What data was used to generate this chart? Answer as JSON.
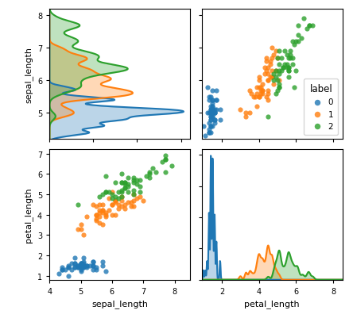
{
  "colors": {
    "0": "#1f77b4",
    "1": "#ff7f0e",
    "2": "#2ca02c"
  },
  "alpha_fill": 0.3,
  "alpha_scatter": 0.8,
  "scatter_size": 20,
  "legend_title": "label",
  "legend_labels": [
    "0",
    "1",
    "2"
  ],
  "sepal_length": {
    "0": [
      5.1,
      4.9,
      4.7,
      4.6,
      5.0,
      5.4,
      4.6,
      5.0,
      4.4,
      4.9,
      5.4,
      4.8,
      4.8,
      4.3,
      5.8,
      5.7,
      5.4,
      5.1,
      5.7,
      5.1,
      5.4,
      5.1,
      4.6,
      5.1,
      4.8,
      5.0,
      5.0,
      5.2,
      5.2,
      4.7,
      4.8,
      5.4,
      5.2,
      5.5,
      4.9,
      5.0,
      5.5,
      4.9,
      4.4,
      5.1,
      5.0,
      4.5,
      4.4,
      5.0,
      5.1,
      4.8,
      5.1,
      4.6,
      5.3,
      5.0
    ],
    "1": [
      7.0,
      6.4,
      6.9,
      5.5,
      6.5,
      5.7,
      6.3,
      4.9,
      6.6,
      5.2,
      5.0,
      5.9,
      6.0,
      6.1,
      5.6,
      6.7,
      5.6,
      5.8,
      6.2,
      5.6,
      5.9,
      6.1,
      6.3,
      6.1,
      6.4,
      6.6,
      6.8,
      6.7,
      6.0,
      5.7,
      5.5,
      5.5,
      5.8,
      6.0,
      5.4,
      6.0,
      6.7,
      6.3,
      5.6,
      5.5,
      5.5,
      6.1,
      5.8,
      5.0,
      5.6,
      5.7,
      5.7,
      6.2,
      5.1,
      5.7
    ],
    "2": [
      6.3,
      5.8,
      7.1,
      6.3,
      6.5,
      7.6,
      4.9,
      7.3,
      6.7,
      7.2,
      6.5,
      6.4,
      6.8,
      5.7,
      5.8,
      6.4,
      6.5,
      7.7,
      7.7,
      6.0,
      6.9,
      5.6,
      7.7,
      6.3,
      6.7,
      7.2,
      6.2,
      6.1,
      6.4,
      7.2,
      7.4,
      7.9,
      6.4,
      6.3,
      6.1,
      7.7,
      6.3,
      6.4,
      6.0,
      6.9,
      6.7,
      6.9,
      5.8,
      6.8,
      6.7,
      6.7,
      6.3,
      6.5,
      6.2,
      5.9
    ]
  },
  "petal_length": {
    "0": [
      1.4,
      1.4,
      1.3,
      1.5,
      1.4,
      1.7,
      1.4,
      1.5,
      1.4,
      1.5,
      1.5,
      1.6,
      1.4,
      1.1,
      1.2,
      1.5,
      1.3,
      1.4,
      1.7,
      1.5,
      1.7,
      1.5,
      1.0,
      1.7,
      1.9,
      1.6,
      1.6,
      1.5,
      1.4,
      1.6,
      1.6,
      1.5,
      1.5,
      1.4,
      1.5,
      1.2,
      1.3,
      1.4,
      1.3,
      1.5,
      1.3,
      1.3,
      1.3,
      1.6,
      1.9,
      1.4,
      1.6,
      1.4,
      1.5,
      1.4
    ],
    "1": [
      4.7,
      4.5,
      4.9,
      4.0,
      4.6,
      4.5,
      4.7,
      3.3,
      4.6,
      3.9,
      3.5,
      4.2,
      4.0,
      4.7,
      3.6,
      4.4,
      4.5,
      4.1,
      4.5,
      3.9,
      4.8,
      4.0,
      4.9,
      4.7,
      4.3,
      4.4,
      4.8,
      5.0,
      4.5,
      3.5,
      3.8,
      3.7,
      3.9,
      5.1,
      4.5,
      4.5,
      4.7,
      4.4,
      4.1,
      4.0,
      4.4,
      4.6,
      4.0,
      3.3,
      4.2,
      4.2,
      4.2,
      4.3,
      3.0,
      4.1
    ],
    "2": [
      6.0,
      5.1,
      5.9,
      5.6,
      5.8,
      6.6,
      4.5,
      6.3,
      5.8,
      6.1,
      5.1,
      5.3,
      5.5,
      5.0,
      5.1,
      5.3,
      5.5,
      6.7,
      6.9,
      5.0,
      5.7,
      4.9,
      6.7,
      4.9,
      5.7,
      6.0,
      4.8,
      4.9,
      5.6,
      5.8,
      6.1,
      6.4,
      5.6,
      5.1,
      5.6,
      6.1,
      5.6,
      5.5,
      4.8,
      5.4,
      5.6,
      5.1,
      5.9,
      5.7,
      5.2,
      5.0,
      5.2,
      5.4,
      5.1,
      5.1
    ]
  },
  "sepal_xlim": [
    4.0,
    8.5
  ],
  "sepal_ylim": [
    4.2,
    8.2
  ],
  "petal_xlim": [
    0.9,
    8.5
  ],
  "petal_ylim": [
    0.8,
    7.2
  ],
  "kde_bw_sepal": 0.18,
  "kde_bw_petal": 0.15
}
